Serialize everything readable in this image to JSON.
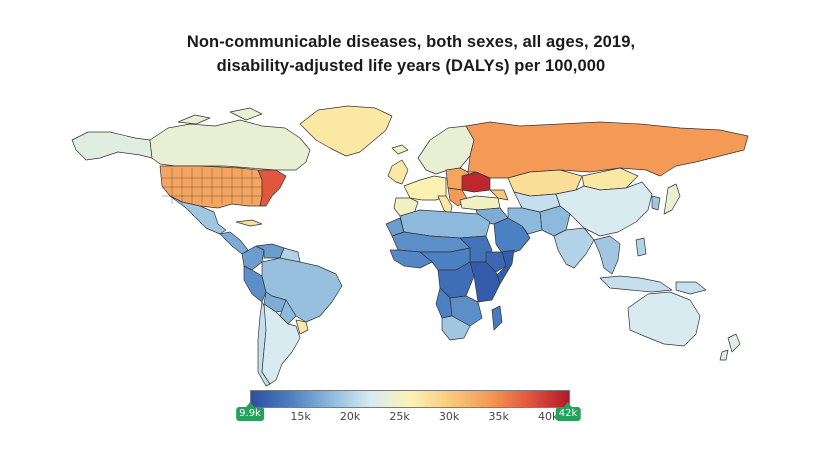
{
  "title": {
    "line1": "Non-communicable diseases, both sexes, all ages, 2019,",
    "line2": "disability-adjusted life years (DALYs) per 100,000"
  },
  "colors": {
    "scale": [
      "#2d4fa3",
      "#4a7fc1",
      "#8cb9dc",
      "#d6ebf2",
      "#fbf3b3",
      "#fbc97c",
      "#f49a56",
      "#e0573d",
      "#b2182b"
    ],
    "land_unknown": "#cfcfcf",
    "border": "#333333",
    "slider": "#27a05c"
  },
  "legend": {
    "min": 9900,
    "max": 42000,
    "ticks": [
      "15k",
      "20k",
      "25k",
      "30k",
      "35k",
      "40k"
    ],
    "tick_values": [
      15000,
      20000,
      25000,
      30000,
      35000,
      40000
    ],
    "handle_min_label": "9.9k",
    "handle_max_label": "42k"
  },
  "regions": {
    "alaska": 23000,
    "canada": 24000,
    "greenland": 27000,
    "usa": 33000,
    "usa_east": 38000,
    "mexico": 19000,
    "central_america": 17000,
    "cuba": 28000,
    "colombia": 16000,
    "venezuela": 16000,
    "guianas": 20000,
    "peru": 15000,
    "brazil": 18500,
    "bolivia": 17000,
    "paraguay": 18000,
    "chile": 21000,
    "argentina": 22000,
    "uruguay": 27000,
    "iceland": 25000,
    "uk_ireland": 27000,
    "scandinavia": 24000,
    "western_europe": 26000,
    "iberia": 25000,
    "italy": 27000,
    "eastern_europe": 33000,
    "ukraine": 41000,
    "balkans": 34000,
    "russia": 34000,
    "turkey": 25000,
    "caucasus": 30000,
    "kazakhstan": 28000,
    "central_asia": 21000,
    "mongolia": 27000,
    "china": 22000,
    "korea": 19000,
    "japan": 24000,
    "middle_east": 17000,
    "arabian_peninsula": 14000,
    "iran": 18000,
    "afghanistan_pakistan": 18000,
    "india": 20000,
    "southeast_asia": 19000,
    "indonesia": 21000,
    "philippines": 20000,
    "png": 21000,
    "north_africa": 18000,
    "western_sahara": 16000,
    "sahel": 15000,
    "west_africa": 14500,
    "central_africa": 14000,
    "sudan": 13000,
    "ethiopia": 12000,
    "somalia": 11000,
    "east_africa": 11000,
    "drc": 12500,
    "angola": 14000,
    "southern_africa": 15000,
    "south_africa": 19000,
    "madagascar": 13500,
    "australia": 22000,
    "new_zealand": 23000
  }
}
